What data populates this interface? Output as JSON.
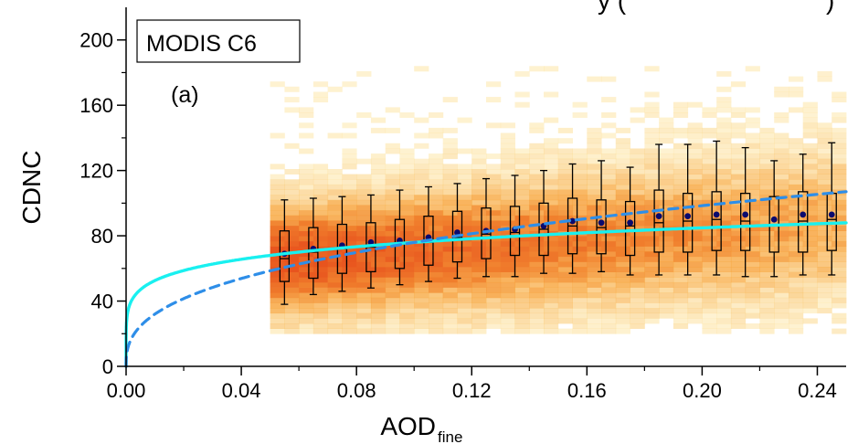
{
  "chart_data": {
    "type": "heatmap",
    "title": "",
    "title_fragment": "y         (",
    "title_fragment_end": ")",
    "xlabel": "AOD",
    "xlabel_sub": "fine",
    "ylabel": "CDNC",
    "xlim": [
      0,
      0.25
    ],
    "ylim": [
      0,
      220
    ],
    "x_ticks": [
      "0.00",
      "0.04",
      "0.08",
      "0.12",
      "0.16",
      "0.20",
      "0.24"
    ],
    "y_ticks": [
      "0",
      "40",
      "80",
      "120",
      "160",
      "200"
    ],
    "legend_box": "MODIS C6",
    "panel_label": "(a)",
    "grid": false,
    "colors": {
      "heat_low": "#fdeaa0",
      "heat_mid": "#f7a43a",
      "heat_high": "#e8541e",
      "fit_solid": "#19f0f0",
      "fit_dashed": "#2e8ee8",
      "mean_marker": "#0a0a6e"
    },
    "boxes": {
      "x": [
        0.055,
        0.065,
        0.075,
        0.085,
        0.095,
        0.105,
        0.115,
        0.125,
        0.135,
        0.145,
        0.155,
        0.165,
        0.175,
        0.185,
        0.195,
        0.205,
        0.215,
        0.225,
        0.235,
        0.245
      ],
      "whisker_low": [
        38,
        44,
        46,
        48,
        50,
        52,
        54,
        55,
        55,
        57,
        57,
        58,
        56,
        56,
        56,
        56,
        55,
        55,
        56,
        56
      ],
      "q1": [
        52,
        54,
        57,
        58,
        60,
        62,
        64,
        66,
        68,
        68,
        69,
        69,
        68,
        70,
        70,
        71,
        71,
        70,
        70,
        71
      ],
      "median": [
        66,
        70,
        72,
        73,
        75,
        76,
        79,
        81,
        82,
        84,
        86,
        85,
        86,
        88,
        89,
        90,
        89,
        86,
        89,
        90
      ],
      "q3": [
        83,
        85,
        87,
        88,
        90,
        92,
        95,
        97,
        98,
        100,
        103,
        102,
        101,
        108,
        106,
        107,
        106,
        104,
        107,
        106
      ],
      "whisker_high": [
        102,
        103,
        104,
        105,
        108,
        110,
        112,
        115,
        117,
        120,
        124,
        126,
        122,
        136,
        136,
        138,
        134,
        126,
        130,
        137
      ],
      "mean": [
        69,
        72,
        74,
        76,
        77,
        79,
        82,
        83,
        84,
        86,
        89,
        88,
        88,
        92,
        92,
        93,
        93,
        90,
        93,
        93
      ]
    },
    "fits": [
      {
        "style": "solid",
        "form": "a*x^b",
        "a": 109.8,
        "b": 0.16
      },
      {
        "style": "dashed",
        "form": "a*x^b",
        "a": 180.0,
        "b": 0.375
      }
    ],
    "density": {
      "x_range": [
        0.05,
        0.25
      ],
      "x_bins": 40,
      "y_bins": 52,
      "y_range": [
        20,
        184
      ]
    }
  }
}
